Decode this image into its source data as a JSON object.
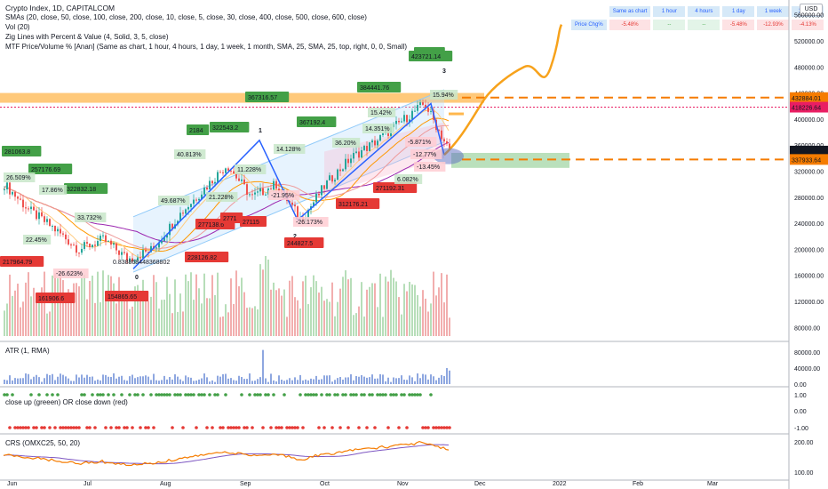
{
  "header": {
    "lines": [
      "Crypto Index, 1D, CAPITALCOM",
      "SMAs (20, close, 50, close, 100, close, 200, close, 10, close, 5, close, 30, close, 400, close, 500, close, 600, close)",
      "Vol (20)",
      "Zig Lines with Percent & Value (4, Solid, 3, 5, close)",
      "MTF Price/Volume % [Anan] (Same as chart, 1 hour, 4 hours, 1 day, 1 week, 1 month, SMA, 25, SMA, 25, top, right, 0, 0, Small)"
    ]
  },
  "currency_button": "USD",
  "mtf_table": {
    "headers": [
      "Same as chart",
      "1 hour",
      "4 hours",
      "1 day",
      "1 week",
      "1 month"
    ],
    "row_label": "Price Chg%",
    "values": [
      "-5.48%",
      "--",
      "--",
      "-5.48%",
      "-12.93%",
      "-4.13%"
    ]
  },
  "panes": {
    "atr_label": "ATR (1, RMA)",
    "close_label": "close up (greeen) OR close down (red)",
    "crs_label": "CRS (OMXC25, 50, 20)"
  },
  "colors": {
    "up": "#26a69a",
    "down": "#ef5350",
    "zig": "#2962ff",
    "projection": "#f7a21b",
    "zone_orange": "#ffb74d",
    "zone_green": "#66bb6a",
    "sma_orange": "#ff9800",
    "sma_purple": "#9c27b0"
  },
  "chart_data": {
    "type": "candlestick",
    "title": "Crypto Index, 1D, CAPITALCOM",
    "x_axis": {
      "tick_labels": [
        "Jun",
        "Jul",
        "Aug",
        "Sep",
        "Oct",
        "Nov",
        "Dec",
        "2022",
        "Feb",
        "Mar"
      ]
    },
    "price_axis": {
      "tick_labels": [
        "560000.00",
        "520000.00",
        "480000.00",
        "440000.00",
        "400000.00",
        "360000.00",
        "320000.00",
        "280000.00",
        "240000.00",
        "200000.00",
        "160000.00",
        "120000.00",
        "80000.00"
      ],
      "ylim": [
        60000,
        580000
      ],
      "markers": [
        {
          "label": "432884.01",
          "value": 432884.01,
          "color": "#f57c00"
        },
        {
          "label": "418226.64",
          "value": 418226.64,
          "color": "#e91e63"
        },
        {
          "label": "350772.45",
          "value": 350772.45,
          "color": "#131722"
        },
        {
          "label": "05:04:08",
          "value": 340500,
          "color": "#131722"
        },
        {
          "label": "337933.64",
          "value": 337933.64,
          "color": "#f57c00"
        }
      ]
    },
    "price_path": [
      [
        "Jun",
        300000
      ],
      [
        "Jun",
        260000
      ],
      [
        "Jun",
        232000
      ],
      [
        "Jul",
        200000
      ],
      [
        "Jul",
        215000
      ],
      [
        "Jul",
        185000
      ],
      [
        "Aug",
        200000
      ],
      [
        "Aug",
        250000
      ],
      [
        "Aug",
        290000
      ],
      [
        "Sep",
        330000
      ],
      [
        "Sep",
        280000
      ],
      [
        "Sep",
        300000
      ],
      [
        "Sep",
        245000
      ],
      [
        "Oct",
        300000
      ],
      [
        "Oct",
        340000
      ],
      [
        "Oct",
        365000
      ],
      [
        "Nov",
        395000
      ],
      [
        "Nov",
        423721
      ],
      [
        "Nov",
        350772
      ]
    ],
    "projection_path": [
      [
        350772
      ],
      [
        430000
      ],
      [
        505000
      ],
      [
        545000
      ]
    ],
    "zig_points": [
      {
        "label": "0",
        "value": 170000
      },
      {
        "label": "1",
        "value": 367316.57
      },
      {
        "label": "2",
        "value": 244827.5
      },
      {
        "label": "3",
        "value": 423721.14
      }
    ],
    "zone_lines": [
      {
        "label": "resistance",
        "value": 432884.01
      },
      {
        "label": "support",
        "value": 337933.64
      }
    ],
    "value_labels_green": [
      "281063.8",
      "257176.69",
      "322832.18",
      "367316.57",
      "322543.2",
      "2184",
      "384441.76",
      "396078",
      "423721.14",
      "367192.4"
    ],
    "value_labels_red": [
      "217964.79",
      "161906.6",
      "154865.65",
      "228126.82",
      "277138.6",
      "244827.5",
      "271192.31",
      "312176.21",
      "27115",
      "2771"
    ],
    "percent_labels": [
      "26.509%",
      "17.86%",
      "33.732%",
      "22.45%",
      "-26.623%",
      "49.687%",
      "40.813%",
      "21.228%",
      "11.228%",
      "14.128%",
      "-21.95%",
      "-26.173%",
      "15.42%",
      "36.20%",
      "14.351%",
      "-5.871%",
      "-12.77%",
      "6.082%",
      "-13.45%",
      "15.94%",
      "0.838868448368802"
    ],
    "atr": {
      "tick_labels": [
        "80000.00",
        "40000.00",
        "0.00"
      ],
      "ylim": [
        0,
        100000
      ]
    },
    "close_signal": {
      "tick_labels": [
        "1.00",
        "0.00",
        "-1.00"
      ]
    },
    "crs": {
      "tick_labels": [
        "200.00",
        "100.00"
      ],
      "ylim": [
        80,
        220
      ]
    }
  }
}
